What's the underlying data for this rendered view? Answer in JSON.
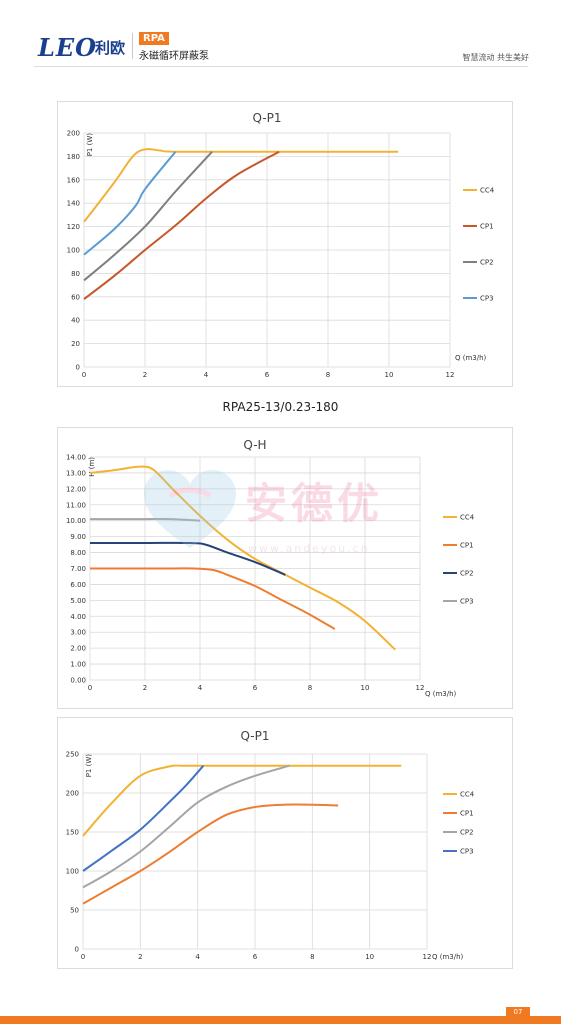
{
  "header": {
    "logo": "LEO",
    "logo_cn": "利欧",
    "tag": "RPA",
    "subtitle": "永磁循环屏蔽泵",
    "slogan": "智慧流动 共生美好"
  },
  "model_label": "RPA25-13/0.23-180",
  "page_number": "07",
  "watermark": {
    "text": "安德优",
    "url": "www.andeyou.cn"
  },
  "colors": {
    "accent": "#f07a22",
    "brand": "#1b3f8f"
  },
  "chart_data": [
    {
      "type": "line",
      "title": "Q-P1",
      "ylabel": "P1 (W)",
      "xlabel": "Q (m3/h)",
      "xlim": [
        0,
        12
      ],
      "ylim": [
        0,
        200
      ],
      "xticks": [
        "0",
        "2",
        "4",
        "6",
        "8",
        "10",
        "12"
      ],
      "yticks": [
        "0",
        "20",
        "40",
        "60",
        "80",
        "100",
        "120",
        "140",
        "160",
        "180",
        "200"
      ],
      "grid": true,
      "legend_position": "right",
      "series": [
        {
          "name": "CC4",
          "color": "#f2b233",
          "points": [
            [
              0,
              124
            ],
            [
              1,
              158
            ],
            [
              1.6,
              180
            ],
            [
              2,
              186
            ],
            [
              2.5,
              185
            ],
            [
              3,
              184
            ],
            [
              6,
              184
            ],
            [
              10.3,
              184
            ]
          ]
        },
        {
          "name": "CP1",
          "color": "#c8562a",
          "points": [
            [
              0,
              58
            ],
            [
              1,
              78
            ],
            [
              2,
              100
            ],
            [
              3,
              121
            ],
            [
              4,
              144
            ],
            [
              5,
              164
            ],
            [
              6.4,
              184
            ]
          ]
        },
        {
          "name": "CP2",
          "color": "#7f7f7f",
          "points": [
            [
              0,
              74
            ],
            [
              1,
              96
            ],
            [
              2,
              120
            ],
            [
              3,
              150
            ],
            [
              4.2,
              184
            ]
          ]
        },
        {
          "name": "CP3",
          "color": "#5b9bd5",
          "points": [
            [
              0,
              96
            ],
            [
              1,
              118
            ],
            [
              1.7,
              138
            ],
            [
              2,
              152
            ],
            [
              3,
              184
            ]
          ]
        }
      ]
    },
    {
      "type": "line",
      "title": "Q-H",
      "ylabel": "H (m)",
      "xlabel": "Q (m3/h)",
      "xlim": [
        0,
        12
      ],
      "ylim": [
        0,
        14
      ],
      "xticks": [
        "0",
        "2",
        "4",
        "6",
        "8",
        "10",
        "12"
      ],
      "yticks": [
        "0.00",
        "1.00",
        "2.00",
        "3.00",
        "4.00",
        "5.00",
        "6.00",
        "7.00",
        "8.00",
        "9.00",
        "10.00",
        "11.00",
        "12.00",
        "13.00",
        "14.00"
      ],
      "grid": true,
      "legend_position": "right",
      "series": [
        {
          "name": "CC4",
          "color": "#f2b233",
          "points": [
            [
              0,
              13
            ],
            [
              1,
              13.2
            ],
            [
              1.8,
              13.4
            ],
            [
              2.3,
              13.2
            ],
            [
              3,
              12
            ],
            [
              4,
              10.3
            ],
            [
              5,
              8.8
            ],
            [
              6,
              7.6
            ],
            [
              7,
              6.7
            ],
            [
              8,
              5.8
            ],
            [
              9,
              4.9
            ],
            [
              10,
              3.7
            ],
            [
              11.1,
              1.9
            ]
          ]
        },
        {
          "name": "CP1",
          "color": "#ed7d31",
          "points": [
            [
              0,
              7
            ],
            [
              2,
              7
            ],
            [
              3,
              7
            ],
            [
              3.8,
              7
            ],
            [
              4.5,
              6.9
            ],
            [
              5,
              6.6
            ],
            [
              6,
              5.9
            ],
            [
              7,
              5
            ],
            [
              8,
              4.1
            ],
            [
              8.9,
              3.2
            ]
          ]
        },
        {
          "name": "CP2",
          "color": "#264478",
          "points": [
            [
              0,
              8.6
            ],
            [
              2,
              8.6
            ],
            [
              3.6,
              8.6
            ],
            [
              4.2,
              8.5
            ],
            [
              5,
              8
            ],
            [
              6,
              7.4
            ],
            [
              7.1,
              6.6
            ]
          ]
        },
        {
          "name": "CP3",
          "color": "#a5a5a5",
          "points": [
            [
              0,
              10.1
            ],
            [
              1,
              10.1
            ],
            [
              2,
              10.1
            ],
            [
              3,
              10.1
            ],
            [
              4,
              10
            ]
          ]
        }
      ]
    },
    {
      "type": "line",
      "title": "Q-P1",
      "ylabel": "P1 (W)",
      "xlabel": "Q (m3/h)",
      "xlim": [
        0,
        12
      ],
      "ylim": [
        0,
        250
      ],
      "xticks": [
        "0",
        "2",
        "4",
        "6",
        "8",
        "10",
        "12"
      ],
      "yticks": [
        "0",
        "50",
        "100",
        "150",
        "200",
        "250"
      ],
      "grid": true,
      "legend_position": "right",
      "series": [
        {
          "name": "CC4",
          "color": "#f2b233",
          "points": [
            [
              0,
              145
            ],
            [
              1,
              187
            ],
            [
              2,
              222
            ],
            [
              3,
              234
            ],
            [
              3.5,
              235
            ],
            [
              5,
              235
            ],
            [
              8,
              235
            ],
            [
              11.1,
              235
            ]
          ]
        },
        {
          "name": "CP1",
          "color": "#ed7d31",
          "points": [
            [
              0,
              58
            ],
            [
              1,
              79
            ],
            [
              2,
              100
            ],
            [
              3,
              124
            ],
            [
              4,
              150
            ],
            [
              5,
              172
            ],
            [
              6,
              182
            ],
            [
              7,
              185
            ],
            [
              8,
              185
            ],
            [
              8.9,
              184
            ]
          ]
        },
        {
          "name": "CP2",
          "color": "#a5a5a5",
          "points": [
            [
              0,
              79
            ],
            [
              1,
              100
            ],
            [
              2,
              125
            ],
            [
              3,
              156
            ],
            [
              4,
              188
            ],
            [
              5,
              208
            ],
            [
              6,
              222
            ],
            [
              7.2,
              235
            ]
          ]
        },
        {
          "name": "CP3",
          "color": "#4472c4",
          "points": [
            [
              0,
              100
            ],
            [
              1,
              126
            ],
            [
              2,
              153
            ],
            [
              3,
              188
            ],
            [
              3.6,
              210
            ],
            [
              4.2,
              235
            ]
          ]
        }
      ]
    }
  ]
}
